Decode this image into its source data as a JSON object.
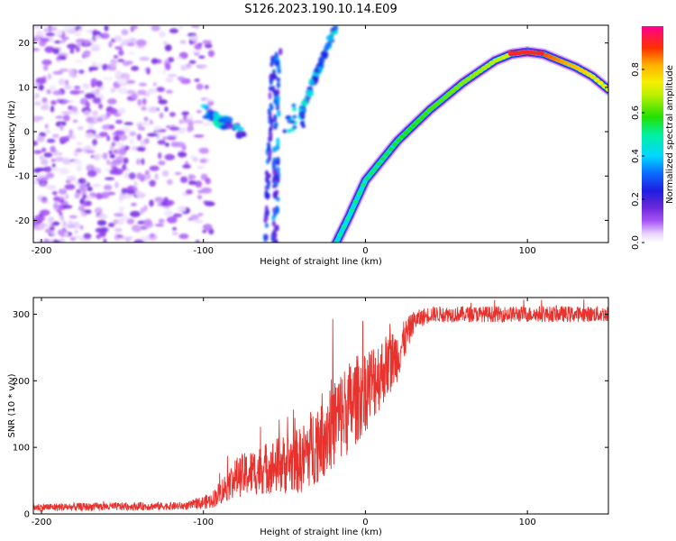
{
  "title": "S126.2023.190.10.14.E09",
  "chart_data": [
    {
      "type": "heatmap",
      "title": "S126.2023.190.10.14.E09",
      "xlabel": "Height of straight line (km)",
      "ylabel": "Frequency (Hz)",
      "xlim": [
        -205,
        150
      ],
      "ylim": [
        -25,
        24
      ],
      "xticks": [
        -200,
        -100,
        0,
        100
      ],
      "yticks": [
        -20,
        -10,
        0,
        10,
        20
      ],
      "colorbar": {
        "label": "Normalized spectral amplitude",
        "ticks": [
          "0.0",
          "0.2",
          "0.4",
          "0.6",
          "0.8"
        ],
        "range": [
          0,
          1
        ]
      },
      "ridge_curve": {
        "x": [
          -18,
          -10,
          0,
          20,
          40,
          60,
          80,
          90,
          100,
          110,
          120,
          130,
          140,
          150
        ],
        "y": [
          -25,
          -19,
          -11,
          -2,
          5,
          11,
          16,
          17.5,
          18,
          17.5,
          16,
          14.5,
          12.5,
          9.5
        ]
      },
      "ridge_peak": {
        "x": [
          88,
          110
        ],
        "y": 17.8,
        "amplitude": 1.0
      },
      "noise_region": {
        "x": [
          -205,
          -95
        ],
        "y": [
          -25,
          24
        ]
      },
      "features": [
        {
          "name": "blob-cluster",
          "x": [
            -100,
            -75
          ],
          "y": [
            -1,
            5
          ]
        },
        {
          "name": "streak-a",
          "x": [
            -60,
            -58
          ],
          "y": [
            -25,
            17
          ]
        },
        {
          "name": "streak-b",
          "x": [
            -53,
            -46
          ],
          "y": [
            -25,
            20
          ]
        },
        {
          "name": "arc-c",
          "x": [
            -48,
            -20
          ],
          "y": [
            0,
            24
          ]
        }
      ]
    },
    {
      "type": "line",
      "xlabel": "Height of straight line (km)",
      "ylabel": "SNR (10 * v/v)",
      "xlim": [
        -205,
        150
      ],
      "ylim": [
        0,
        325
      ],
      "xticks": [
        -200,
        -100,
        0,
        100
      ],
      "yticks": [
        0,
        100,
        200,
        300
      ],
      "color": "#e8322d",
      "envelope": {
        "x": [
          -205,
          -110,
          -95,
          -80,
          -60,
          -40,
          -25,
          -10,
          5,
          20,
          30,
          40,
          150
        ],
        "mean": [
          10,
          12,
          20,
          55,
          70,
          80,
          125,
          160,
          200,
          240,
          290,
          300,
          300
        ],
        "spread": [
          6,
          6,
          12,
          30,
          40,
          50,
          70,
          70,
          60,
          40,
          15,
          12,
          12
        ]
      }
    }
  ]
}
